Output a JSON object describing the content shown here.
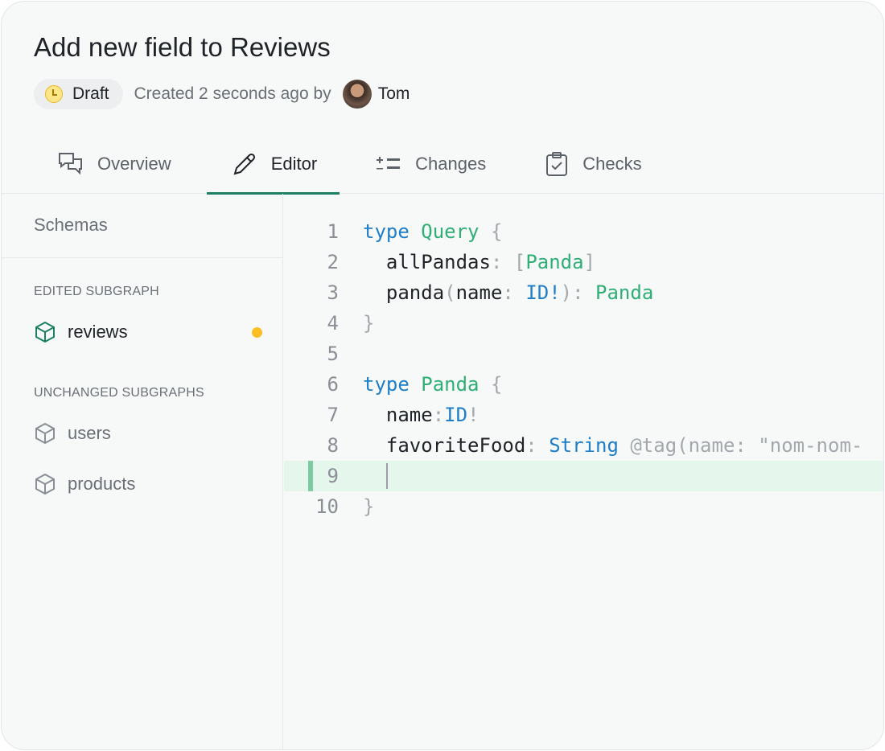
{
  "header": {
    "title": "Add new field to Reviews",
    "status": "Draft",
    "created_text": "Created 2 seconds ago by",
    "author": "Tom"
  },
  "tabs": [
    {
      "label": "Overview",
      "icon": "chat-bubbles-icon"
    },
    {
      "label": "Editor",
      "icon": "pencil-icon",
      "active": true
    },
    {
      "label": "Changes",
      "icon": "plus-minus-list-icon"
    },
    {
      "label": "Checks",
      "icon": "clipboard-check-icon"
    }
  ],
  "sidebar": {
    "title": "Schemas",
    "edited_label": "EDITED SUBGRAPH",
    "edited": [
      {
        "name": "reviews",
        "modified": true
      }
    ],
    "unchanged_label": "UNCHANGED SUBGRAPHS",
    "unchanged": [
      {
        "name": "users"
      },
      {
        "name": "products"
      }
    ]
  },
  "colors": {
    "accent": "#1d8062",
    "modified_dot": "#fbbf24",
    "keyword": "#1e7ec8",
    "type": "#2fae75"
  },
  "editor": {
    "current_line": 9,
    "lines": [
      [
        [
          "k",
          "type"
        ],
        [
          "",
          " "
        ],
        [
          "t",
          "Query"
        ],
        [
          "",
          " "
        ],
        [
          "p",
          "{"
        ]
      ],
      [
        [
          "",
          "  allPandas"
        ],
        [
          "p",
          ": ["
        ],
        [
          "t",
          "Panda"
        ],
        [
          "p",
          "]"
        ]
      ],
      [
        [
          "",
          "  panda"
        ],
        [
          "p",
          "("
        ],
        [
          "",
          "name"
        ],
        [
          "p",
          ": "
        ],
        [
          "k",
          "ID!"
        ],
        [
          "p",
          "): "
        ],
        [
          "t",
          "Panda"
        ]
      ],
      [
        [
          "p",
          "}"
        ]
      ],
      [],
      [
        [
          "k",
          "type"
        ],
        [
          "",
          " "
        ],
        [
          "t",
          "Panda"
        ],
        [
          "",
          " "
        ],
        [
          "p",
          "{"
        ]
      ],
      [
        [
          "",
          "  name"
        ],
        [
          "p",
          ":"
        ],
        [
          "k",
          "ID"
        ],
        [
          "p",
          "!"
        ]
      ],
      [
        [
          "",
          "  favoriteFood"
        ],
        [
          "p",
          ": "
        ],
        [
          "k",
          "String"
        ],
        [
          "d",
          " @tag(name: \"nom-nom-"
        ]
      ],
      [
        [
          "",
          "  "
        ]
      ],
      [
        [
          "p",
          "}"
        ]
      ]
    ]
  }
}
